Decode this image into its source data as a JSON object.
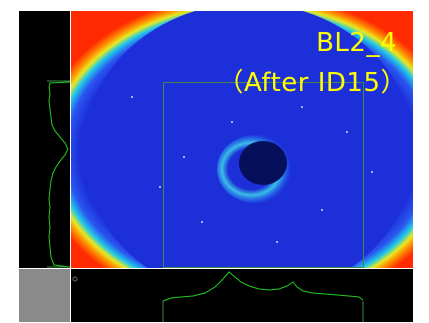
{
  "image_view": {
    "label_line1": "BL2_4",
    "label_line2": "（After ID15）",
    "label_color": "#ffff00"
  },
  "colors": {
    "detector_background": "#1c2fd9",
    "detector_ring_edge": "#ff2a00",
    "beamstop_center": "#06105a",
    "scattering_halo": "#3fd8e8",
    "profile_trace": "#22cc22",
    "region_box": "#3f8a4a",
    "corner_fill": "#8a8a8a"
  },
  "icons": {
    "bottom_panel_marker": "small-circle-marker-icon"
  }
}
